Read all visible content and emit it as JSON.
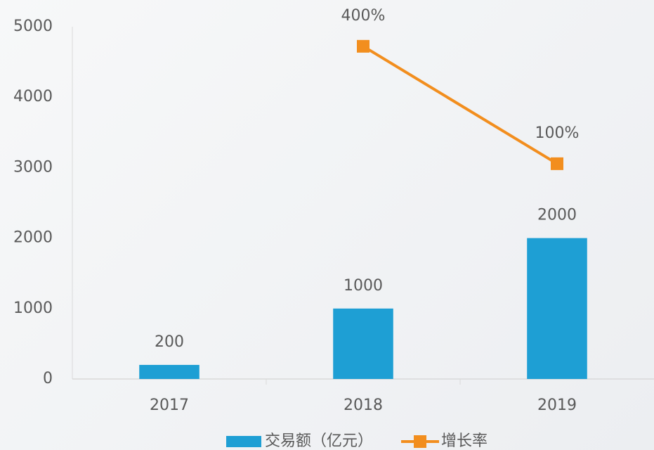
{
  "chart_data": {
    "type": "bar",
    "categories": [
      "2017",
      "2018",
      "2019"
    ],
    "series": [
      {
        "name": "交易额（亿元）",
        "type": "bar",
        "color": "#1e9fd4",
        "values": [
          200,
          1000,
          2000
        ]
      },
      {
        "name": "增长率",
        "type": "line",
        "axis": "y2",
        "color": "#f28e1e",
        "values": [
          null,
          400,
          100
        ],
        "value_labels": [
          null,
          "400%",
          "100%"
        ]
      }
    ],
    "ylim": [
      0,
      5000
    ],
    "yticks": [
      0,
      1000,
      2000,
      3000,
      4000,
      5000
    ],
    "y2lim": [
      -450,
      450
    ],
    "legend": "bottom",
    "grid": false
  }
}
